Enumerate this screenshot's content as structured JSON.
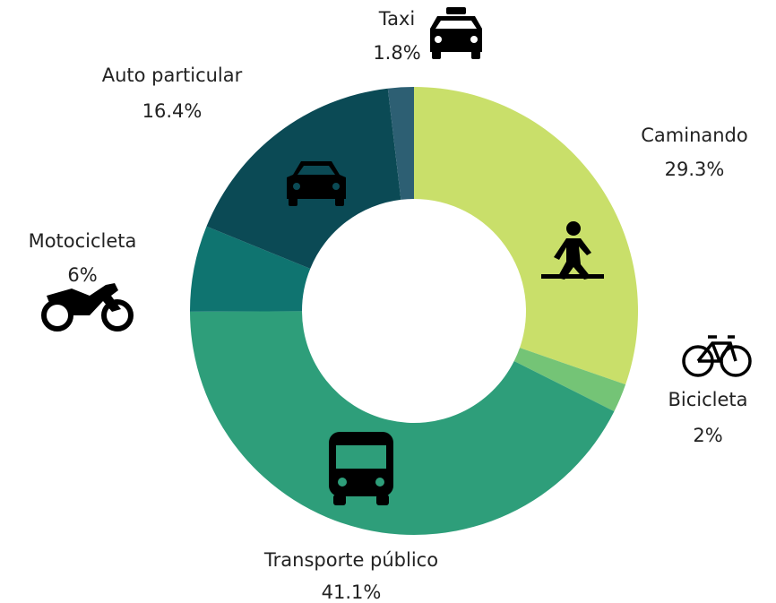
{
  "chart_data": {
    "type": "donut",
    "categories": [
      "Caminando",
      "Bicicleta",
      "Transporte público",
      "Motocicleta",
      "Auto particular",
      "Taxi"
    ],
    "values": [
      29.3,
      2,
      41.1,
      6,
      16.4,
      1.8
    ],
    "value_labels": [
      "29.3%",
      "2%",
      "41.1%",
      "6%",
      "16.4%",
      "1.8%"
    ],
    "colors": [
      "#c9df6a",
      "#74c476",
      "#2e9e7a",
      "#0f7470",
      "#0b4a55",
      "#2d5f73"
    ]
  }
}
